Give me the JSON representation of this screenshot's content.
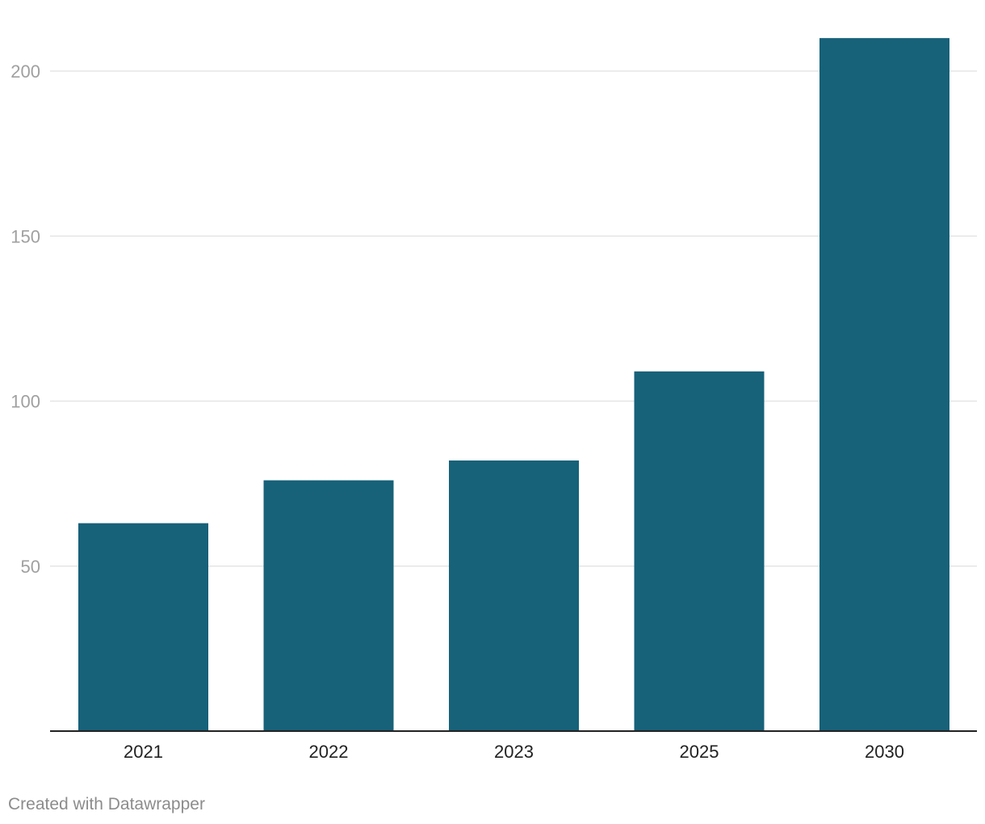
{
  "chart_data": {
    "type": "bar",
    "categories": [
      "2021",
      "2022",
      "2023",
      "2025",
      "2030"
    ],
    "values": [
      63,
      76,
      82,
      109,
      210
    ],
    "ylim": [
      0,
      210
    ],
    "yticks": [
      50,
      100,
      150,
      200
    ],
    "title": "",
    "xlabel": "",
    "ylabel": "",
    "grid": true,
    "bar_color": "#176179",
    "grid_color": "#e5e5e5",
    "ytick_color": "#a0a0a0",
    "xtick_color": "#222222",
    "axis_color": "#222222"
  },
  "footer": {
    "credit": "Created with Datawrapper"
  }
}
